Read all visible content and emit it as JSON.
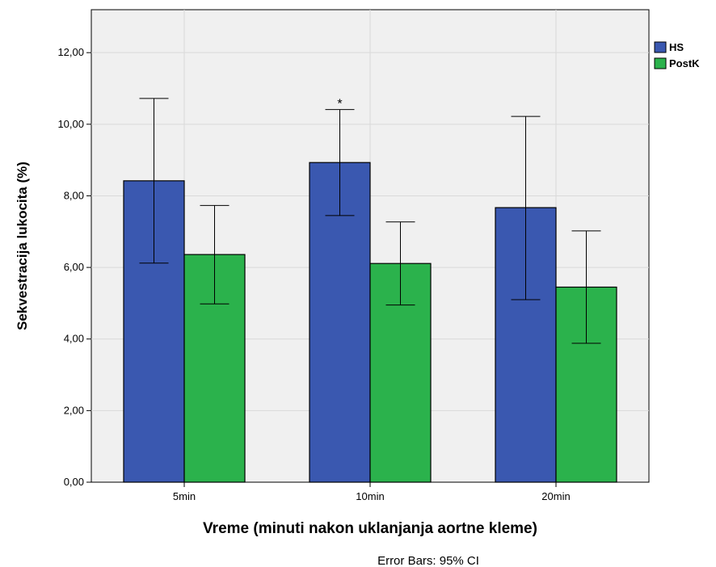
{
  "chart_data": {
    "type": "bar",
    "xlabel": "Vreme (minuti nakon uklanjanja aortne kleme)",
    "ylabel": "Sekvestracija lukocita (%)",
    "categories": [
      "5min",
      "10min",
      "20min"
    ],
    "ylim": [
      0,
      13.2
    ],
    "yticks": [
      0,
      2,
      4,
      6,
      8,
      10,
      12
    ],
    "ytick_labels": [
      "0,00",
      "2,00",
      "4,00",
      "6,00",
      "8,00",
      "10,00",
      "12,00"
    ],
    "grid": true,
    "legend_position": "top-right",
    "series": [
      {
        "name": "HS",
        "color": "#3a58b0",
        "values": [
          8.42,
          8.93,
          7.67
        ],
        "ci_low": [
          6.12,
          7.45,
          5.1
        ],
        "ci_high": [
          10.72,
          10.41,
          10.22
        ]
      },
      {
        "name": "PostK",
        "color": "#2bb24c",
        "values": [
          6.36,
          6.11,
          5.45
        ],
        "ci_low": [
          4.98,
          4.95,
          3.88
        ],
        "ci_high": [
          7.73,
          7.27,
          7.02
        ]
      }
    ],
    "annotations": [
      {
        "text": "*",
        "category": "10min",
        "series": "HS"
      }
    ],
    "footnote": "Error Bars: 95% CI"
  }
}
